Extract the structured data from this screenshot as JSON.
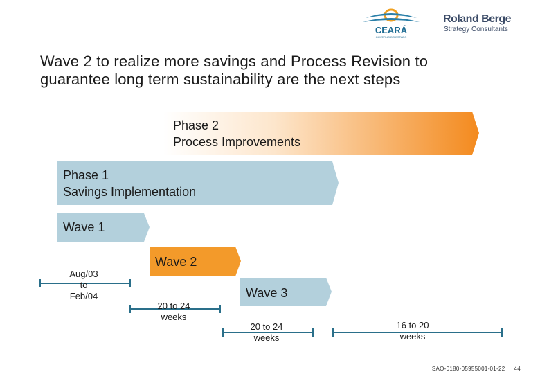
{
  "colors": {
    "phase_blue": "#b3d0dc",
    "wave_orange": "#f39a2a",
    "timeline_blue": "#2a6f8a"
  },
  "header": {
    "logo_ceara": "CEARÁ",
    "logo_ceara_sub": "GOVERNO DO ESTADO",
    "logo_rb": "Roland Berger",
    "logo_rb_sub": "Strategy Consultants"
  },
  "title": {
    "line1": "Wave 2 to realize more savings and Process Revision to",
    "line2": "guarantee long term sustainability are the next steps"
  },
  "phase2": {
    "line1": "Phase 2",
    "line2": "Process Improvements"
  },
  "phase1": {
    "line1": "Phase 1",
    "line2": "Savings Implementation"
  },
  "waves": {
    "wave1": "Wave 1",
    "wave2": "Wave 2",
    "wave3": "Wave 3"
  },
  "durations": {
    "d1": [
      "Aug/03",
      "to",
      "Feb/04"
    ],
    "d2": [
      "20 to 24",
      "weeks"
    ],
    "d3": [
      "20 to 24",
      "weeks"
    ],
    "d4": [
      "16 to 20",
      "weeks"
    ]
  },
  "footer": {
    "code": "SAO-0180-05955001-01-22",
    "page": "44"
  }
}
